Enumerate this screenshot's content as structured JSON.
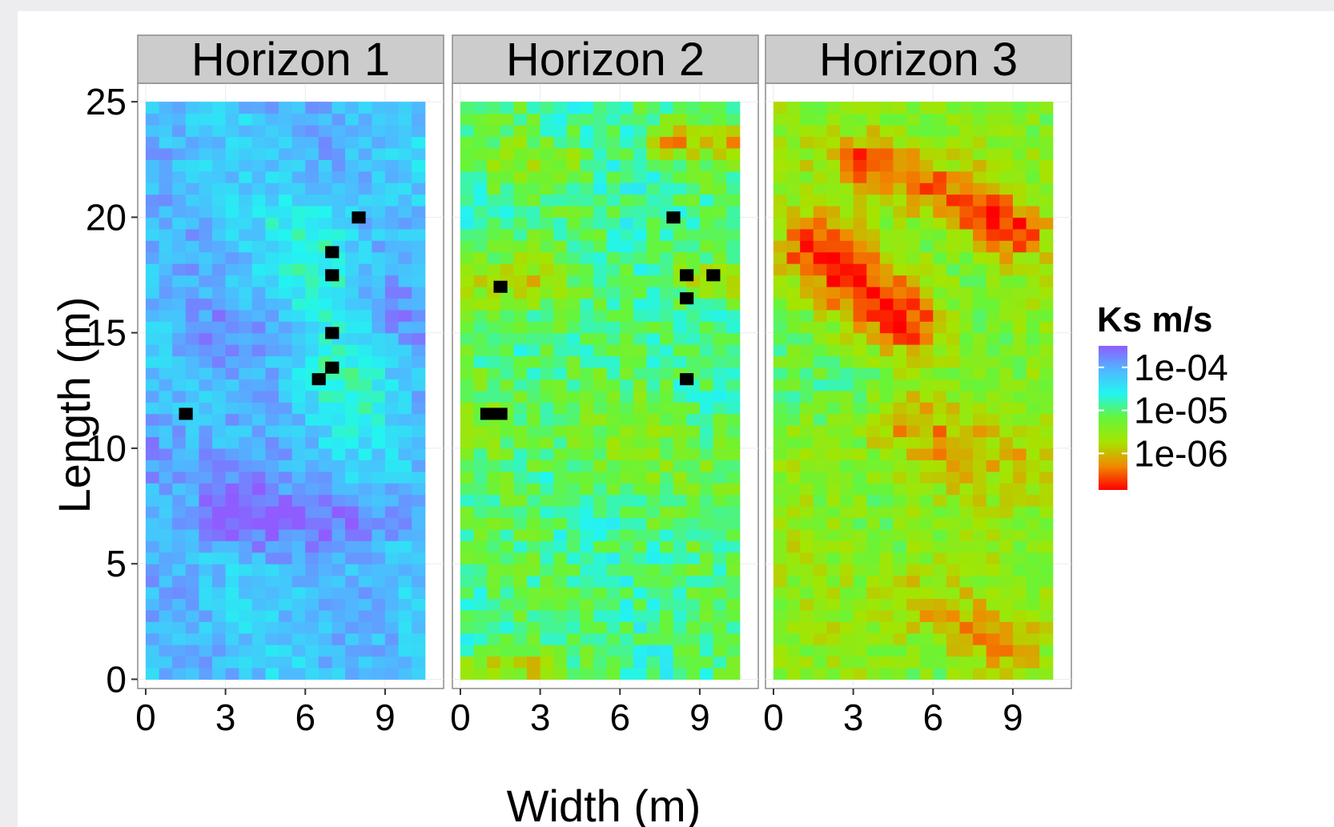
{
  "chart_data": {
    "type": "heatmap",
    "xlabel": "Width (m)",
    "ylabel": "Length (m)",
    "x_ticks": [
      0,
      3,
      6,
      9
    ],
    "y_ticks": [
      0,
      5,
      10,
      15,
      20,
      25
    ],
    "xlim": [
      -0.3,
      11.2
    ],
    "ylim": [
      -0.4,
      25.8
    ],
    "cell_size_m": 0.5,
    "grid_columns": 21,
    "grid_rows": 50,
    "legend": {
      "title": "Ks m/s",
      "position": "right",
      "labels": [
        "1e-04",
        "1e-05",
        "1e-06"
      ],
      "label_values_log10": [
        -4,
        -5,
        -6
      ],
      "range_log10": [
        -3.5,
        -6.85
      ],
      "colors_high_to_low": [
        "#8f5cff",
        "#4fb8ff",
        "#22f5f0",
        "#66f53a",
        "#a6e400",
        "#f08a00",
        "#ff0000"
      ]
    },
    "panels": [
      {
        "name": "Horizon 1",
        "mean_log10": -4.15,
        "noise": 0.28,
        "features": [
          {
            "x0": 6.2,
            "y0": 19.5,
            "x1": 7.8,
            "y1": 12.0,
            "width": 1.2,
            "delta": -0.55
          },
          {
            "x0": 0.0,
            "y0": 10.5,
            "x1": 4.0,
            "y1": 7.0,
            "width": 1.2,
            "delta": 0.35
          },
          {
            "x0": 3.0,
            "y0": 7.0,
            "x1": 10.5,
            "y1": 7.0,
            "width": 0.8,
            "delta": 0.4
          },
          {
            "x0": 3.0,
            "y0": 15.0,
            "x1": 10.0,
            "y1": 16.0,
            "width": 1.0,
            "delta": 0.25
          }
        ],
        "wells": [
          [
            8,
            20
          ],
          [
            7,
            18.5
          ],
          [
            7,
            17.5
          ],
          [
            7,
            15
          ],
          [
            7,
            13.5
          ],
          [
            6.5,
            13
          ],
          [
            1.5,
            11.5
          ]
        ]
      },
      {
        "name": "Horizon 2",
        "mean_log10": -4.95,
        "noise": 0.38,
        "features": [
          {
            "x0": 0.0,
            "y0": 17.3,
            "x1": 2.5,
            "y1": 17.3,
            "width": 0.9,
            "delta": -0.9
          },
          {
            "x0": 7.5,
            "y0": 23.3,
            "x1": 10.5,
            "y1": 23.3,
            "width": 0.5,
            "delta": -1.0
          },
          {
            "x0": 8.5,
            "y0": 17.3,
            "x1": 10.5,
            "y1": 17.3,
            "width": 0.6,
            "delta": -0.7
          },
          {
            "x0": 0.0,
            "y0": 0.5,
            "x1": 3.0,
            "y1": 0.5,
            "width": 0.5,
            "delta": -0.8
          },
          {
            "x0": 0.5,
            "y0": 22.5,
            "x1": 4.0,
            "y1": 22.5,
            "width": 0.6,
            "delta": -0.5
          },
          {
            "x0": 0.0,
            "y0": 12.0,
            "x1": 10.5,
            "y1": 9.0,
            "width": 1.4,
            "delta": -0.35
          }
        ],
        "wells": [
          [
            8,
            20
          ],
          [
            8.5,
            17.5
          ],
          [
            9.5,
            17.5
          ],
          [
            1.5,
            17
          ],
          [
            8.5,
            16.5
          ],
          [
            8.5,
            13
          ],
          [
            1,
            11.5
          ],
          [
            1.5,
            11.5
          ]
        ]
      },
      {
        "name": "Horizon 3",
        "mean_log10": -5.45,
        "noise": 0.35,
        "features": [
          {
            "x0": 3.5,
            "y0": 22.5,
            "x1": 9.0,
            "y1": 19.5,
            "width": 0.9,
            "delta": -1.1
          },
          {
            "x0": 1.5,
            "y0": 18.5,
            "x1": 5.0,
            "y1": 15.5,
            "width": 1.0,
            "delta": -1.25
          },
          {
            "x0": 5.0,
            "y0": 11.0,
            "x1": 10.5,
            "y1": 9.0,
            "width": 1.1,
            "delta": -0.6
          },
          {
            "x0": 5.0,
            "y0": 3.5,
            "x1": 8.5,
            "y1": 1.5,
            "width": 0.9,
            "delta": -0.7
          },
          {
            "x0": 0.0,
            "y0": 13.0,
            "x1": 4.0,
            "y1": 13.0,
            "width": 1.2,
            "delta": 0.3
          }
        ],
        "wells": []
      }
    ]
  }
}
